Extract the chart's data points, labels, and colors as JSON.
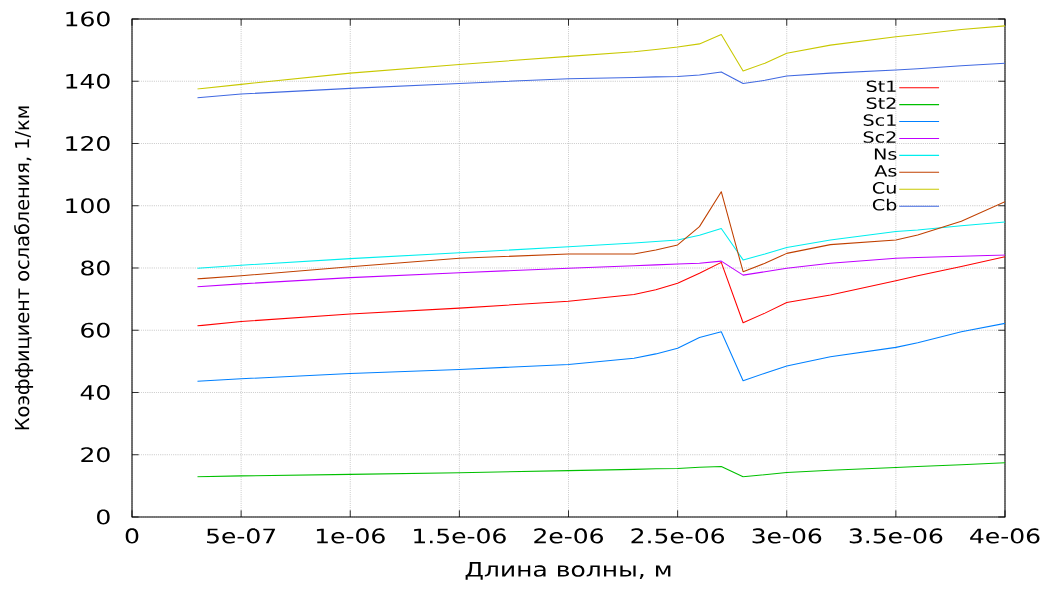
{
  "chart_data": {
    "type": "line",
    "xlabel": "Длина волны, м",
    "ylabel": "Коэффициент ослабления, 1/км",
    "x": [
      3e-07,
      5e-07,
      1e-06,
      1.5e-06,
      2e-06,
      2.3e-06,
      2.4e-06,
      2.5e-06,
      2.6e-06,
      2.7e-06,
      2.8e-06,
      2.9e-06,
      3e-06,
      3.2e-06,
      3.5e-06,
      3.6e-06,
      3.8e-06,
      4e-06
    ],
    "series": [
      {
        "name": "St1",
        "color": "#ff0000",
        "values": [
          61.4,
          62.8,
          65.2,
          67.1,
          69.3,
          71.5,
          73,
          75.1,
          78.3,
          81.8,
          62.4,
          65.5,
          68.9,
          71.3,
          75.9,
          77.5,
          80.5,
          83.6
        ]
      },
      {
        "name": "St2",
        "color": "#00c000",
        "values": [
          12.9,
          13.2,
          13.7,
          14.2,
          14.9,
          15.3,
          15.5,
          15.6,
          16,
          16.2,
          12.9,
          13.6,
          14.3,
          15,
          15.9,
          16.2,
          16.8,
          17.4
        ]
      },
      {
        "name": "Sc1",
        "color": "#0080ff",
        "values": [
          43.6,
          44.4,
          46.1,
          47.4,
          49,
          51,
          52.4,
          54.2,
          57.7,
          59.5,
          43.8,
          46.2,
          48.5,
          51.5,
          54.5,
          56,
          59.5,
          62.2
        ]
      },
      {
        "name": "Sc2",
        "color": "#c000ff",
        "values": [
          74,
          74.9,
          76.9,
          78.5,
          79.9,
          80.7,
          81,
          81.3,
          81.5,
          82.2,
          77.7,
          78.8,
          79.9,
          81.5,
          83.1,
          83.4,
          83.8,
          84.2
        ]
      },
      {
        "name": "Ns",
        "color": "#00eeee",
        "values": [
          79.9,
          80.9,
          83,
          84.9,
          86.8,
          88,
          88.5,
          89,
          90.5,
          92.7,
          82.6,
          84.5,
          86.6,
          89,
          91.7,
          92.2,
          93.6,
          94.8
        ]
      },
      {
        "name": "As",
        "color": "#c04000",
        "values": [
          76.5,
          77.5,
          80.4,
          83.1,
          84.5,
          84.5,
          85.8,
          87.4,
          93.3,
          104.5,
          78.8,
          81.5,
          84.7,
          87.5,
          89,
          90.6,
          95,
          101.3
        ]
      },
      {
        "name": "Cu",
        "color": "#c8c800",
        "values": [
          137.5,
          139,
          142.6,
          145.4,
          148,
          149.5,
          150.2,
          151,
          152,
          155,
          143.3,
          145.8,
          149,
          151.6,
          154.3,
          155,
          156.6,
          157.8
        ]
      },
      {
        "name": "Cb",
        "color": "#4169e1",
        "values": [
          134.7,
          135.9,
          137.7,
          139.3,
          140.8,
          141.2,
          141.4,
          141.5,
          142,
          143,
          139.3,
          140.3,
          141.7,
          142.6,
          143.6,
          144,
          145,
          145.8
        ]
      }
    ],
    "xlim": [
      0,
      4e-06
    ],
    "ylim": [
      0,
      160
    ],
    "xticks": [
      {
        "value": 0,
        "label": "0"
      },
      {
        "value": 5e-07,
        "label": "5e-07"
      },
      {
        "value": 1e-06,
        "label": "1e-06"
      },
      {
        "value": 1.5e-06,
        "label": "1.5e-06"
      },
      {
        "value": 2e-06,
        "label": "2e-06"
      },
      {
        "value": 2.5e-06,
        "label": "2.5e-06"
      },
      {
        "value": 3e-06,
        "label": "3e-06"
      },
      {
        "value": 3.5e-06,
        "label": "3.5e-06"
      },
      {
        "value": 4e-06,
        "label": "4e-06"
      }
    ],
    "yticks": [
      0,
      20,
      40,
      60,
      80,
      100,
      120,
      140,
      160
    ],
    "grid": true,
    "legend": "top right"
  }
}
